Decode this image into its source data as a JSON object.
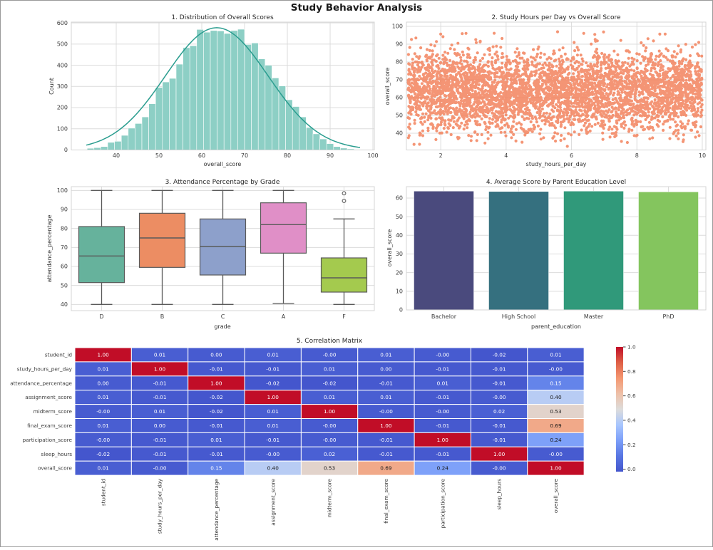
{
  "figure": {
    "title": "Study Behavior Analysis",
    "background": "#ffffff",
    "grid_color": "#dcdcdc",
    "spine_color": "#d4d4d4",
    "text_color": "#262626"
  },
  "chart_data": [
    {
      "id": "score-distribution",
      "type": "bar",
      "subtype": "histogram-with-kde",
      "title": "1. Distribution of Overall Scores",
      "xlabel": "overall_score",
      "ylabel": "Count",
      "x_ticks": [
        40,
        50,
        60,
        70,
        80,
        90,
        100
      ],
      "y_ticks": [
        0,
        100,
        200,
        300,
        400,
        500,
        600
      ],
      "xlim": [
        29.5,
        100.33
      ],
      "ylim": [
        0,
        603.7
      ],
      "bin_start": 33.2,
      "bin_width": 1.6,
      "counts": [
        8,
        11,
        16,
        36,
        41,
        69,
        103,
        125,
        156,
        218,
        295,
        321,
        338,
        405,
        483,
        492,
        569,
        556,
        564,
        562,
        550,
        564,
        570,
        498,
        505,
        430,
        400,
        340,
        302,
        237,
        205,
        156,
        106,
        76,
        52,
        30,
        16,
        9,
        5
      ],
      "kde": {
        "mean": 63.5,
        "sd": 12,
        "peak": 577
      },
      "bar_color": "#8dcfc5",
      "bar_edge": "#ffffff",
      "kde_color": "#2a9d8f",
      "grid": true
    },
    {
      "id": "hours-vs-score",
      "type": "scatter",
      "title": "2. Study Hours per Day vs Overall Score",
      "xlabel": "study_hours_per_day",
      "ylabel": "overall_score",
      "x_ticks": [
        2,
        4,
        6,
        8,
        10
      ],
      "y_ticks": [
        40,
        50,
        60,
        70,
        80,
        90,
        100
      ],
      "xlim": [
        0.95,
        10.11
      ],
      "ylim": [
        30.6,
        102.4
      ],
      "n_points": 4300,
      "x_range": [
        1,
        10
      ],
      "y_mean": 63.5,
      "y_sd": 11,
      "y_clip": [
        32.5,
        97.5
      ],
      "seed": 20,
      "point_color": "#f3835e",
      "point_radius": 2.1,
      "grid": true
    },
    {
      "id": "attendance-by-grade",
      "type": "box",
      "title": "3. Attendance Percentage by Grade",
      "xlabel": "grade",
      "ylabel": "attendance_percentage",
      "y_ticks": [
        40,
        50,
        60,
        70,
        80,
        90,
        100
      ],
      "ylim": [
        36.75,
        102
      ],
      "categories": [
        "D",
        "B",
        "C",
        "A",
        "F"
      ],
      "stats": [
        {
          "low": 40,
          "q1": 51.5,
          "med": 65.5,
          "q3": 81,
          "high": 100,
          "outliers": [],
          "color": "#66b29c"
        },
        {
          "low": 40,
          "q1": 59.5,
          "med": 75,
          "q3": 88,
          "high": 100,
          "outliers": [],
          "color": "#ec8d63"
        },
        {
          "low": 40,
          "q1": 55.5,
          "med": 70.5,
          "q3": 85,
          "high": 100,
          "outliers": [],
          "color": "#8da0cb"
        },
        {
          "low": 40.5,
          "q1": 67,
          "med": 82,
          "q3": 93.5,
          "high": 100,
          "outliers": [],
          "color": "#e08fc7"
        },
        {
          "low": 40,
          "q1": 46.5,
          "med": 54,
          "q3": 64.5,
          "high": 85,
          "outliers": [
            94.5,
            98.5
          ],
          "color": "#a4ca4e"
        }
      ],
      "line_color": "#5a5a5a",
      "grid": true
    },
    {
      "id": "score-by-parent-education",
      "type": "bar",
      "title": "4. Average Score by Parent Education Level",
      "xlabel": "parent_education",
      "ylabel": "overall_score",
      "y_ticks": [
        0,
        10,
        20,
        30,
        40,
        50,
        60
      ],
      "ylim": [
        0,
        66.1
      ],
      "categories": [
        "Bachelor",
        "High School",
        "Master",
        "PhD"
      ],
      "values": [
        63.7,
        63.5,
        63.7,
        63.3
      ],
      "colors": [
        "#4a4a7d",
        "#35707f",
        "#30997a",
        "#84c55e"
      ],
      "grid": true
    },
    {
      "id": "correlation-matrix",
      "type": "heatmap",
      "title": "5. Correlation Matrix",
      "labels": [
        "student_id",
        "study_hours_per_day",
        "attendance_percentage",
        "assignment_score",
        "midterm_score",
        "final_exam_score",
        "participation_score",
        "sleep_hours",
        "overall_score"
      ],
      "values": [
        [
          "1.00",
          "0.01",
          "0.00",
          "0.01",
          "-0.00",
          "0.01",
          "-0.00",
          "-0.02",
          "0.01"
        ],
        [
          "0.01",
          "1.00",
          "-0.01",
          "-0.01",
          "0.01",
          "0.00",
          "-0.01",
          "-0.01",
          "-0.00"
        ],
        [
          "0.00",
          "-0.01",
          "1.00",
          "-0.02",
          "-0.02",
          "-0.01",
          "0.01",
          "-0.01",
          "0.15"
        ],
        [
          "0.01",
          "-0.01",
          "-0.02",
          "1.00",
          "0.01",
          "0.01",
          "-0.01",
          "-0.00",
          "0.40"
        ],
        [
          "-0.00",
          "0.01",
          "-0.02",
          "0.01",
          "1.00",
          "-0.00",
          "-0.00",
          "0.02",
          "0.53"
        ],
        [
          "0.01",
          "0.00",
          "-0.01",
          "0.01",
          "-0.00",
          "1.00",
          "-0.01",
          "-0.01",
          "0.69"
        ],
        [
          "-0.00",
          "-0.01",
          "0.01",
          "-0.01",
          "-0.00",
          "-0.01",
          "1.00",
          "-0.01",
          "0.24"
        ],
        [
          "-0.02",
          "-0.01",
          "-0.01",
          "-0.00",
          "0.02",
          "-0.01",
          "-0.01",
          "1.00",
          "-0.00"
        ],
        [
          "0.01",
          "-0.00",
          "0.15",
          "0.40",
          "0.53",
          "0.69",
          "0.24",
          "-0.00",
          "1.00"
        ]
      ],
      "vmin": -0.02,
      "vmax": 1.0,
      "colormap": "coolwarm",
      "colorbar_ticks": [
        "0.0",
        "0.2",
        "0.4",
        "0.6",
        "0.8",
        "1.0"
      ],
      "cell_border": "#ffffff"
    }
  ]
}
